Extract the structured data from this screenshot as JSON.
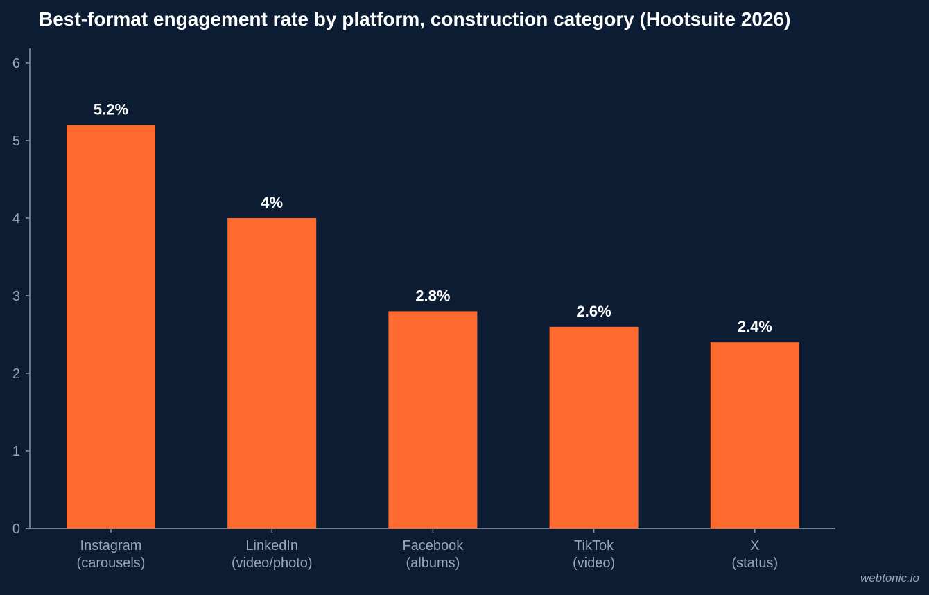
{
  "chart_data": {
    "type": "bar",
    "title": "Best-format engagement rate by platform, construction category (Hootsuite 2026)",
    "categories": [
      [
        "Instagram",
        "(carousels)"
      ],
      [
        "LinkedIn",
        "(video/photo)"
      ],
      [
        "Facebook",
        "(albums)"
      ],
      [
        "TikTok",
        "(video)"
      ],
      [
        "X",
        "(status)"
      ]
    ],
    "values": [
      5.2,
      4,
      2.8,
      2.6,
      2.4
    ],
    "data_labels": [
      "5.2%",
      "4%",
      "2.8%",
      "2.6%",
      "2.4%"
    ],
    "ylim": [
      0,
      6
    ],
    "yticks": [
      0,
      1,
      2,
      3,
      4,
      5,
      6
    ],
    "xlabel": "",
    "ylabel": "",
    "grid": false,
    "bar_color": "#ff6b2e",
    "axis_color": "#8a96aa",
    "background_color": "#0c1c33"
  },
  "watermark": "webtonic.io"
}
